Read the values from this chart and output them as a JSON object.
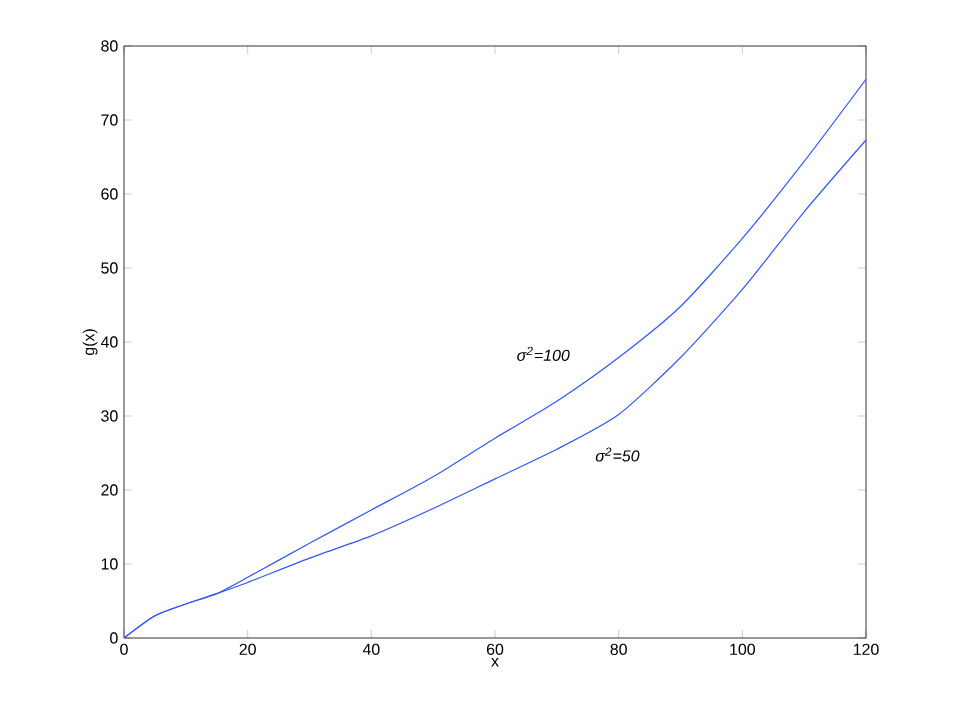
{
  "chart_data": {
    "type": "line",
    "xlabel": "x",
    "ylabel": "g(x)",
    "x": [
      0,
      5,
      10,
      15,
      20,
      30,
      40,
      50,
      60,
      70,
      80,
      90,
      100,
      110,
      120
    ],
    "series": [
      {
        "color": "#3355ff",
        "values": [
          0,
          3,
          4.6,
          6,
          8.2,
          12.8,
          17.3,
          21.8,
          27,
          32,
          37.9,
          44.8,
          54,
          64.4,
          75.5
        ]
      },
      {
        "color": "#3355ff",
        "values": [
          0,
          3,
          4.6,
          6,
          7.5,
          10.8,
          13.8,
          17.5,
          21.5,
          25.5,
          30.2,
          37.9,
          47.1,
          57.6,
          67.3
        ]
      }
    ],
    "annotations": [
      "σ$^{2}$=100",
      "σ$^{2}$=50"
    ],
    "xlim": [
      0,
      120
    ],
    "xticks": [
      0,
      20,
      40,
      60,
      80,
      100,
      120
    ],
    "ylim": [
      0,
      80
    ],
    "yticks": [
      0,
      10,
      20,
      30,
      40,
      50,
      60,
      70,
      80
    ],
    "grid": false,
    "marker": "none",
    "line_style": "solid"
  }
}
